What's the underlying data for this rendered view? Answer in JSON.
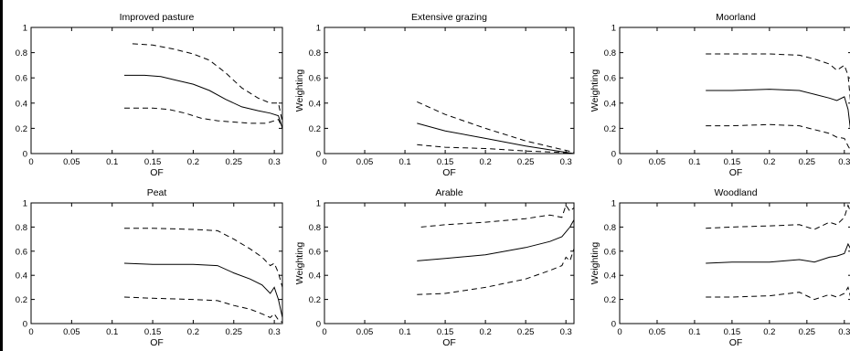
{
  "chart_data": [
    {
      "type": "line",
      "title": "Improved pasture",
      "xlabel": "OF",
      "ylabel": "",
      "xlim": [
        0,
        0.31
      ],
      "ylim": [
        0,
        1
      ],
      "xticks": [
        "0",
        "0.05",
        "0.1",
        "0.15",
        "0.2",
        "0.25",
        "0.3"
      ],
      "yticks": [
        "0",
        "0.2",
        "0.4",
        "0.6",
        "0.8",
        "1"
      ],
      "series": [
        {
          "style": "dashed",
          "x": [
            0.125,
            0.15,
            0.175,
            0.2,
            0.22,
            0.24,
            0.26,
            0.28,
            0.295,
            0.305,
            0.31
          ],
          "y": [
            0.87,
            0.86,
            0.83,
            0.79,
            0.74,
            0.64,
            0.52,
            0.44,
            0.4,
            0.4,
            0.25
          ]
        },
        {
          "style": "solid",
          "x": [
            0.115,
            0.14,
            0.16,
            0.18,
            0.2,
            0.22,
            0.24,
            0.26,
            0.28,
            0.295,
            0.305,
            0.31
          ],
          "y": [
            0.62,
            0.62,
            0.61,
            0.58,
            0.55,
            0.5,
            0.43,
            0.37,
            0.34,
            0.32,
            0.3,
            0.2
          ]
        },
        {
          "style": "dashed",
          "x": [
            0.115,
            0.13,
            0.15,
            0.17,
            0.19,
            0.21,
            0.23,
            0.25,
            0.27,
            0.29,
            0.305,
            0.31
          ],
          "y": [
            0.36,
            0.36,
            0.36,
            0.35,
            0.32,
            0.28,
            0.26,
            0.25,
            0.24,
            0.24,
            0.27,
            0.2
          ]
        }
      ]
    },
    {
      "type": "line",
      "title": "Extensive grazing",
      "xlabel": "OF",
      "ylabel": "Weighting",
      "xlim": [
        0,
        0.31
      ],
      "ylim": [
        0,
        1
      ],
      "xticks": [
        "0",
        "0.05",
        "0.1",
        "0.15",
        "0.2",
        "0.25",
        "0.3"
      ],
      "yticks": [
        "0",
        "0.2",
        "0.4",
        "0.6",
        "0.8",
        "1"
      ],
      "series": [
        {
          "style": "dashed",
          "x": [
            0.115,
            0.15,
            0.2,
            0.25,
            0.29,
            0.31
          ],
          "y": [
            0.41,
            0.31,
            0.2,
            0.1,
            0.04,
            0.01
          ]
        },
        {
          "style": "solid",
          "x": [
            0.115,
            0.15,
            0.2,
            0.25,
            0.29,
            0.31
          ],
          "y": [
            0.24,
            0.18,
            0.12,
            0.06,
            0.02,
            0.0
          ]
        },
        {
          "style": "dashed",
          "x": [
            0.115,
            0.15,
            0.2,
            0.25,
            0.29,
            0.31
          ],
          "y": [
            0.07,
            0.05,
            0.04,
            0.02,
            0.01,
            0.0
          ]
        }
      ]
    },
    {
      "type": "line",
      "title": "Moorland",
      "xlabel": "OF",
      "ylabel": "Weighting",
      "xlim": [
        0,
        0.31
      ],
      "ylim": [
        0,
        1
      ],
      "xticks": [
        "0",
        "0.05",
        "0.1",
        "0.15",
        "0.2",
        "0.25",
        "0.3"
      ],
      "yticks": [
        "0",
        "0.2",
        "0.4",
        "0.6",
        "0.8",
        "1"
      ],
      "series": [
        {
          "style": "dashed",
          "x": [
            0.115,
            0.15,
            0.2,
            0.24,
            0.26,
            0.28,
            0.29,
            0.3,
            0.305,
            0.31
          ],
          "y": [
            0.79,
            0.79,
            0.79,
            0.78,
            0.75,
            0.71,
            0.66,
            0.7,
            0.62,
            0.3
          ]
        },
        {
          "style": "solid",
          "x": [
            0.115,
            0.15,
            0.2,
            0.24,
            0.26,
            0.28,
            0.29,
            0.3,
            0.305,
            0.31
          ],
          "y": [
            0.5,
            0.5,
            0.51,
            0.5,
            0.47,
            0.44,
            0.42,
            0.45,
            0.35,
            0.1
          ]
        },
        {
          "style": "dashed",
          "x": [
            0.115,
            0.15,
            0.2,
            0.24,
            0.26,
            0.28,
            0.29,
            0.3,
            0.305,
            0.31
          ],
          "y": [
            0.22,
            0.22,
            0.23,
            0.22,
            0.19,
            0.16,
            0.13,
            0.12,
            0.06,
            0.01
          ]
        }
      ]
    },
    {
      "type": "line",
      "title": "Peat",
      "xlabel": "OF",
      "ylabel": "",
      "xlim": [
        0,
        0.31
      ],
      "ylim": [
        0,
        1
      ],
      "xticks": [
        "0",
        "0.05",
        "0.1",
        "0.15",
        "0.2",
        "0.25",
        "0.3"
      ],
      "yticks": [
        "0",
        "0.2",
        "0.4",
        "0.6",
        "0.8",
        "1"
      ],
      "series": [
        {
          "style": "dashed",
          "x": [
            0.115,
            0.15,
            0.2,
            0.23,
            0.25,
            0.27,
            0.285,
            0.295,
            0.3,
            0.305,
            0.31
          ],
          "y": [
            0.79,
            0.79,
            0.78,
            0.77,
            0.7,
            0.62,
            0.55,
            0.48,
            0.5,
            0.42,
            0.3
          ]
        },
        {
          "style": "solid",
          "x": [
            0.115,
            0.15,
            0.2,
            0.23,
            0.25,
            0.27,
            0.285,
            0.295,
            0.3,
            0.305,
            0.31
          ],
          "y": [
            0.5,
            0.49,
            0.49,
            0.48,
            0.42,
            0.37,
            0.32,
            0.25,
            0.3,
            0.2,
            0.05
          ]
        },
        {
          "style": "dashed",
          "x": [
            0.115,
            0.15,
            0.2,
            0.23,
            0.25,
            0.27,
            0.285,
            0.295,
            0.3,
            0.305,
            0.31
          ],
          "y": [
            0.22,
            0.21,
            0.2,
            0.19,
            0.15,
            0.12,
            0.08,
            0.05,
            0.08,
            0.03,
            0.01
          ]
        }
      ]
    },
    {
      "type": "line",
      "title": "Arable",
      "xlabel": "OF",
      "ylabel": "Weighting",
      "xlim": [
        0,
        0.31
      ],
      "ylim": [
        0,
        1
      ],
      "xticks": [
        "0",
        "0.05",
        "0.1",
        "0.15",
        "0.2",
        "0.25",
        "0.3"
      ],
      "yticks": [
        "0",
        "0.2",
        "0.4",
        "0.6",
        "0.8",
        "1"
      ],
      "series": [
        {
          "style": "dashed",
          "x": [
            0.12,
            0.15,
            0.2,
            0.25,
            0.28,
            0.295,
            0.3,
            0.305,
            0.31
          ],
          "y": [
            0.8,
            0.82,
            0.84,
            0.87,
            0.9,
            0.88,
            0.98,
            0.93,
            0.96
          ]
        },
        {
          "style": "solid",
          "x": [
            0.115,
            0.15,
            0.2,
            0.25,
            0.28,
            0.295,
            0.3,
            0.305,
            0.31
          ],
          "y": [
            0.52,
            0.54,
            0.57,
            0.63,
            0.68,
            0.72,
            0.76,
            0.8,
            0.86
          ]
        },
        {
          "style": "dashed",
          "x": [
            0.115,
            0.15,
            0.2,
            0.25,
            0.28,
            0.295,
            0.3,
            0.305,
            0.31
          ],
          "y": [
            0.24,
            0.25,
            0.3,
            0.37,
            0.44,
            0.48,
            0.55,
            0.52,
            0.62
          ]
        }
      ]
    },
    {
      "type": "line",
      "title": "Woodland",
      "xlabel": "OF",
      "ylabel": "Weighting",
      "xlim": [
        0,
        0.31
      ],
      "ylim": [
        0,
        1
      ],
      "xticks": [
        "0",
        "0.05",
        "0.1",
        "0.15",
        "0.2",
        "0.25",
        "0.3"
      ],
      "yticks": [
        "0",
        "0.2",
        "0.4",
        "0.6",
        "0.8",
        "1"
      ],
      "series": [
        {
          "style": "dashed",
          "x": [
            0.115,
            0.15,
            0.2,
            0.24,
            0.26,
            0.28,
            0.29,
            0.3,
            0.305,
            0.31
          ],
          "y": [
            0.79,
            0.8,
            0.81,
            0.82,
            0.78,
            0.84,
            0.82,
            0.88,
            0.98,
            0.9
          ]
        },
        {
          "style": "solid",
          "x": [
            0.115,
            0.15,
            0.2,
            0.24,
            0.26,
            0.28,
            0.29,
            0.3,
            0.305,
            0.31
          ],
          "y": [
            0.5,
            0.51,
            0.51,
            0.53,
            0.51,
            0.55,
            0.56,
            0.58,
            0.66,
            0.6
          ]
        },
        {
          "style": "dashed",
          "x": [
            0.115,
            0.15,
            0.2,
            0.24,
            0.26,
            0.28,
            0.29,
            0.3,
            0.305,
            0.31
          ],
          "y": [
            0.22,
            0.22,
            0.23,
            0.26,
            0.2,
            0.24,
            0.22,
            0.25,
            0.3,
            0.18
          ]
        }
      ]
    }
  ]
}
